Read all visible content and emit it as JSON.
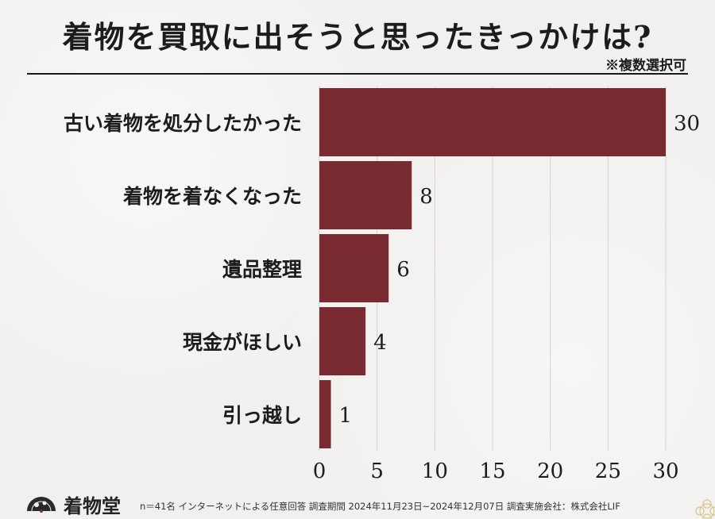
{
  "header": {
    "title": "着物を買取に出そうと思ったきっかけは?",
    "note": "※複数選択可"
  },
  "chart_data": {
    "type": "bar",
    "orientation": "horizontal",
    "categories": [
      "古い着物を処分したかった",
      "着物を着なくなった",
      "遺品整理",
      "現金がほしい",
      "引っ越し"
    ],
    "values": [
      30,
      8,
      6,
      4,
      1
    ],
    "data_labels": [
      "30",
      "8",
      "6",
      "4",
      "1"
    ],
    "xlim": [
      0,
      30
    ],
    "xticks": [
      "0",
      "5",
      "10",
      "15",
      "20",
      "25",
      "30"
    ],
    "grid": true,
    "bar_color": "#7a2b31",
    "title": "着物を買取に出そうと思ったきっかけは?",
    "xlabel": "",
    "ylabel": ""
  },
  "footer": {
    "brand": "着物堂",
    "note": "n＝41名 インターネットによる任意回答 調査期間 2024年11月23日~2024年12月07日 調査実施会社：株式会社LIF"
  },
  "icons": {
    "logo": "fan-icon",
    "corner": "flower-icon"
  }
}
